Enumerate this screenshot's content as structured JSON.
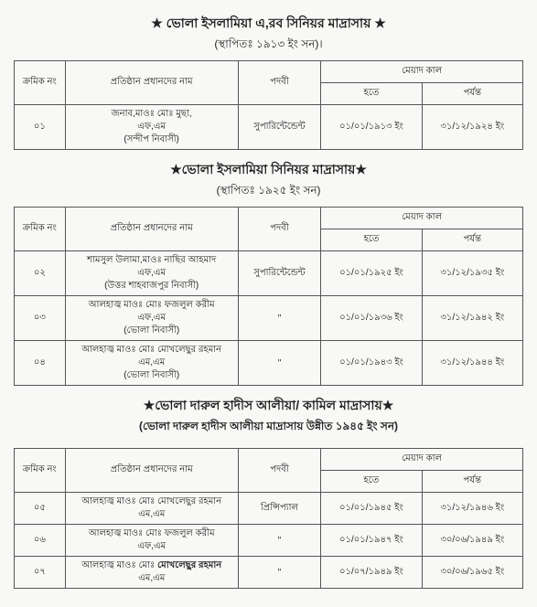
{
  "section1": {
    "title": "★ ভোলা ইসলামিয়া এ,রব সিনিয়র মাদ্রাসায় ★",
    "subtitle": "(স্থাপিতঃ ১৯১৩ ইং সন)।",
    "headers": {
      "serial": "ক্রমিক নং",
      "name": "প্রতিষ্ঠান প্রধানদের নাম",
      "post": "পদবী",
      "period": "মেয়াদ কাল",
      "from": "হতে",
      "to": "পর্যন্ত"
    },
    "rows": [
      {
        "serial": "০১",
        "name_l1": "জনাব,মাওঃ মোঃ মুছা,",
        "name_l2": "এফ,এম",
        "name_l3": "(সন্দীপ নিবাসী)",
        "post": "সুপারিন্টেন্ডেন্ট",
        "from": "০১/০১/১৯১৩ ইং",
        "to": "৩১/১২/১৯২৪ ইং"
      }
    ]
  },
  "section2": {
    "title": "★ভোলা ইসলামিয়া সিনিয়র মাদ্রাসায়★",
    "subtitle": "(স্থাপিতঃ ১৯২৫ ইং সন)",
    "headers": {
      "serial": "ক্রমিক নং",
      "name": "প্রতিষ্ঠান প্রধানদের নাম",
      "post": "পদবী",
      "period": "মেয়াদ কাল",
      "from": "হতে",
      "to": "পর্যন্ত"
    },
    "rows": [
      {
        "serial": "০২",
        "name_l1": "শামসুল উলামা,মাওঃ নাছির আহমাদ",
        "name_l2": "এফ,এম",
        "name_l3": "(উত্তর শাহবাজপুর নিবাসী)",
        "post": "সুপারিন্টেন্ডেন্ট",
        "from": "০১/০১/১৯২৫ ইং",
        "to": "৩১/১২/১৯৩৫ ইং"
      },
      {
        "serial": "০৩",
        "name_l1": "আলহাজ্ব মাওঃ মোঃ ফজলুল করীম",
        "name_l2": "এফ,এম",
        "name_l3": "(ভোলা নিবাসী)",
        "post": "\"",
        "from": "০১/০১/১৯৩৬ ইং",
        "to": "৩১/১২/১৯৪২ ইং"
      },
      {
        "serial": "০৪",
        "name_l1": "আলহাজ্ব মাওঃ মোঃ মোখলেছুর রহমান",
        "name_l2": "এম,এম",
        "name_l3": "(ভোলা নিবাসী)",
        "post": "\"",
        "from": "০১/০১/১৯৪৩ ইং",
        "to": "৩১/১২/১৯৪৪ ইং"
      }
    ]
  },
  "section3": {
    "title": "★ভোলা দারুল হাদীস আলীয়া/ কামিল মাদ্রাসায়★",
    "subtitle": "(ভোলা দারুল হাদীস আলীয়া মাদ্রাসায় উন্নীত ১৯৪৫ ইং সন)",
    "headers": {
      "serial": "ক্রমিক নং",
      "name": "প্রতিষ্ঠান প্রধানদের নাম",
      "post": "পদবী",
      "period": "মেয়াদ কাল",
      "from": "হতে",
      "to": "পর্যন্ত"
    },
    "rows": [
      {
        "serial": "০৫",
        "name_l1": "আলহাজ্ব মাওঃ মোঃ মোখলেছুর রহমান",
        "name_l2": "এম,এম",
        "post": "প্রিন্সিপ্যাল",
        "from": "০১/০১/১৯৪৫ ইং",
        "to": "৩১/১২/১৯৪৬ ইং"
      },
      {
        "serial": "০৬",
        "name_l1": "আলহাজ্ব মাওঃ মোঃ ফজলুল করীম",
        "name_l2": "এফ,এম",
        "post": "\"",
        "from": "০১/০১/১৯৪৭ ইং",
        "to": "৩০/০৬/১৯৪৯ ইং"
      },
      {
        "serial": "০৭",
        "name_l1_part1": "আলহাজ্ব মাওঃ মোঃ ",
        "name_l1_part2": "মোখলেছুর রহমান",
        "name_l2": "এম,এম",
        "post": "\"",
        "from": "০১/০৭/১৯৪৯ ইং",
        "to": "৩০/০৬/১৯৬৫ ইং"
      }
    ]
  }
}
